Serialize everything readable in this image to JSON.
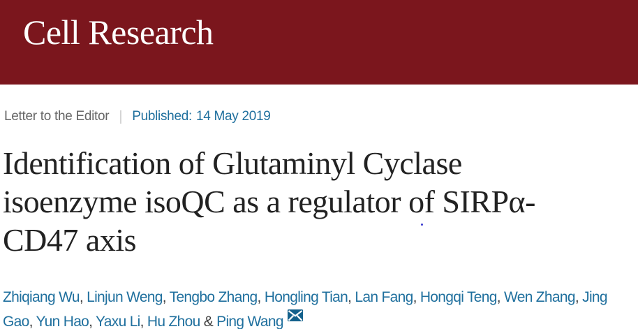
{
  "banner": {
    "journal_name": "Cell Research"
  },
  "meta": {
    "article_type": "Letter to the Editor",
    "divider": "|",
    "published_label": "Published:",
    "published_date": "14 May 2019"
  },
  "title": {
    "full": "Identification of Glutaminyl Cyclase isoenzyme isoQC as a regulator of SIRPα-CD47 axis",
    "lines": [
      "Identification of Glutaminyl Cyclase",
      "isoenzyme isoQC as a regulator of SIRPα-",
      "CD47 axis"
    ]
  },
  "authors": {
    "names": [
      "Zhiqiang Wu",
      "Linjun Weng",
      "Tengbo Zhang",
      "Hongling Tian",
      "Lan Fang",
      "Hongqi Teng",
      "Wen Zhang",
      "Jing Gao",
      "Yun Hao",
      "Yaxu Li",
      "Hu Zhou",
      "Ping Wang"
    ],
    "separator": ", ",
    "last_separator": " & ",
    "email_icon": "envelope-icon"
  },
  "colors": {
    "banner_maroon": "#7b161d",
    "link_blue": "#20709e",
    "meta_gray": "#666666",
    "divider_gray": "#cccccc",
    "title_color": "#222222",
    "separator_color": "#3f3f3f",
    "envelope_fill": "#14618c",
    "page_bg": "#ffffff"
  }
}
